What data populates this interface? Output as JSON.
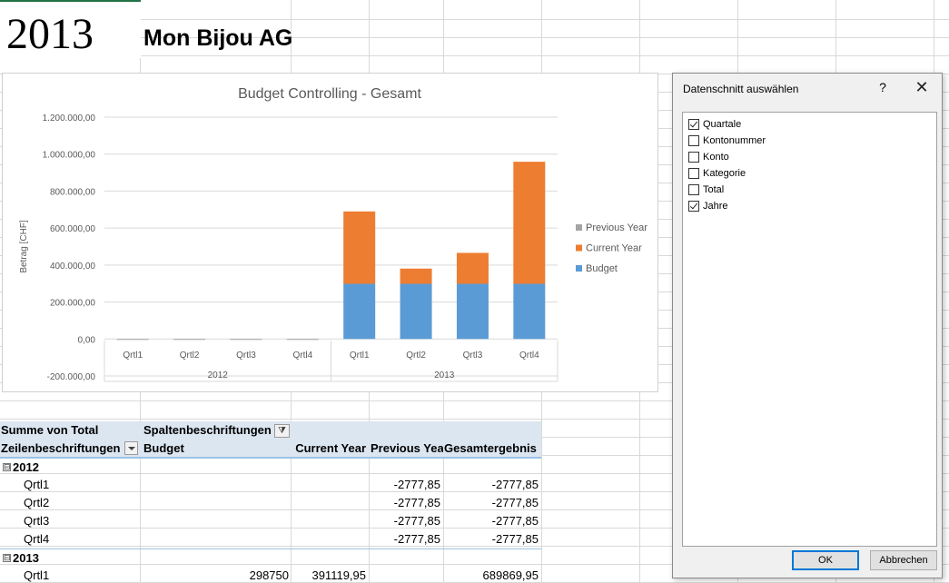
{
  "sheet": {
    "year": "2013",
    "company": "Mon Bijou AG"
  },
  "chart_data": {
    "type": "bar",
    "stacked": true,
    "title": "Budget Controlling - Gesamt",
    "xlabel": "",
    "ylabel": "Betrag [CHF]",
    "ylim": [
      -200000,
      1200000
    ],
    "yticks": [
      1200000,
      1000000,
      800000,
      600000,
      400000,
      200000,
      0,
      -200000
    ],
    "ytick_labels": [
      "1.200.000,00",
      "1.000.000,00",
      "800.000,00",
      "600.000,00",
      "400.000,00",
      "200.000,00",
      "0,00",
      "-200.000,00"
    ],
    "categories": [
      "Qrtl1",
      "Qrtl2",
      "Qrtl3",
      "Qrtl4",
      "Qrtl1",
      "Qrtl2",
      "Qrtl3",
      "Qrtl4"
    ],
    "groups": [
      {
        "label": "2012",
        "count": 4
      },
      {
        "label": "2013",
        "count": 4
      }
    ],
    "series": [
      {
        "name": "Budget",
        "color": "#5b9bd5",
        "values": [
          0,
          0,
          0,
          0,
          298750,
          298750,
          298750,
          298750
        ]
      },
      {
        "name": "Current Year",
        "color": "#ed7d31",
        "values": [
          0,
          0,
          0,
          0,
          391119.95,
          82000,
          167000,
          660000
        ]
      },
      {
        "name": "Previous Year",
        "color": "#a5a5a5",
        "values": [
          -2777.85,
          -2777.85,
          -2777.85,
          -2777.85,
          0,
          0,
          0,
          0
        ]
      }
    ],
    "legend_order": [
      "Previous Year",
      "Current Year",
      "Budget"
    ],
    "legend_position": "right",
    "grid": true
  },
  "pivot": {
    "value_label": "Summe von Total",
    "column_labels": "Spaltenbeschriftungen",
    "row_labels": "Zeilenbeschriftungen",
    "columns": [
      "Budget",
      "Current Year",
      "Previous Yea",
      "Gesamtergebnis"
    ],
    "filter_icon": "filter-icon",
    "collapse_glyph": "⊟",
    "rows": [
      {
        "type": "group",
        "label": "2012"
      },
      {
        "type": "item",
        "label": "Qrtl1",
        "budget": "",
        "current": "",
        "previous": "-2777,85",
        "total": "-2777,85"
      },
      {
        "type": "item",
        "label": "Qrtl2",
        "budget": "",
        "current": "",
        "previous": "-2777,85",
        "total": "-2777,85"
      },
      {
        "type": "item",
        "label": "Qrtl3",
        "budget": "",
        "current": "",
        "previous": "-2777,85",
        "total": "-2777,85"
      },
      {
        "type": "item",
        "label": "Qrtl4",
        "budget": "",
        "current": "",
        "previous": "-2777,85",
        "total": "-2777,85"
      },
      {
        "type": "group",
        "label": "2013"
      },
      {
        "type": "item",
        "label": "Qrtl1",
        "budget": "298750",
        "current": "391119,95",
        "previous": "",
        "total": "689869,95"
      }
    ]
  },
  "dialog": {
    "title": "Datenschnitt auswählen",
    "help": "?",
    "close": "✕",
    "items": [
      {
        "label": "Quartale",
        "checked": true
      },
      {
        "label": "Kontonummer",
        "checked": false
      },
      {
        "label": "Konto",
        "checked": false
      },
      {
        "label": "Kategorie",
        "checked": false
      },
      {
        "label": "Total",
        "checked": false
      },
      {
        "label": "Jahre",
        "checked": true
      }
    ],
    "ok_label": "OK",
    "cancel_label": "Abbrechen"
  }
}
